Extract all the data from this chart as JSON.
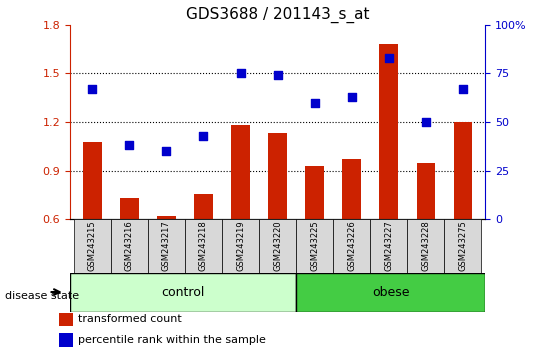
{
  "title": "GDS3688 / 201143_s_at",
  "samples": [
    "GSM243215",
    "GSM243216",
    "GSM243217",
    "GSM243218",
    "GSM243219",
    "GSM243220",
    "GSM243225",
    "GSM243226",
    "GSM243227",
    "GSM243228",
    "GSM243275"
  ],
  "transformed_count": [
    1.08,
    0.73,
    0.62,
    0.76,
    1.18,
    1.13,
    0.93,
    0.97,
    1.68,
    0.95,
    1.2
  ],
  "percentile_rank": [
    67,
    38,
    35,
    43,
    75,
    74,
    60,
    63,
    83,
    50,
    67
  ],
  "ylim_left": [
    0.6,
    1.8
  ],
  "ylim_right": [
    0,
    100
  ],
  "yticks_left": [
    0.6,
    0.9,
    1.2,
    1.5,
    1.8
  ],
  "yticks_right": [
    0,
    25,
    50,
    75,
    100
  ],
  "bar_color": "#cc2200",
  "dot_color": "#0000cc",
  "control_samples": 6,
  "obese_samples": 5,
  "control_color": "#ccffcc",
  "obese_color": "#44cc44",
  "control_label": "control",
  "obese_label": "obese",
  "disease_state_label": "disease state",
  "legend_bar_label": "transformed count",
  "legend_dot_label": "percentile rank within the sample",
  "grid_style": "dotted",
  "grid_color": "#000000",
  "ytick_right_labels": [
    "0",
    "25",
    "50",
    "75",
    "100%"
  ]
}
